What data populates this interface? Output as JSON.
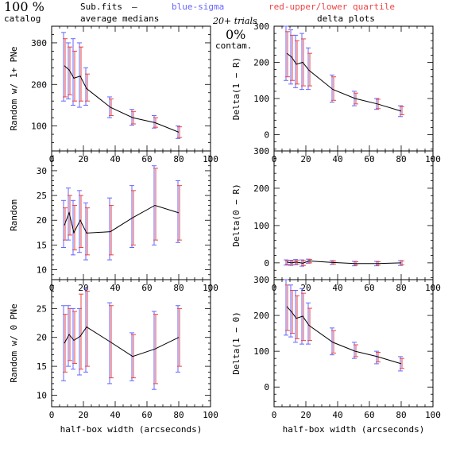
{
  "header": {
    "percent": "100 %",
    "catalog": "catalog",
    "subfits": "Sub.fits",
    "dash": "–",
    "average_medians": "average medians",
    "legend_sigma": "blue-sigma",
    "legend_quartile": "red-upper/lower quartile",
    "trials": "20+ trials",
    "contam_value": "0%",
    "contam_label": "contam.",
    "delta_plots": "delta plots"
  },
  "colors": {
    "sigma": "#6666ff",
    "quartile": "#ee4444",
    "line": "#000000",
    "axis": "#000000"
  },
  "chart_data": [
    {
      "id": "random_1plus",
      "type": "line",
      "ylabel": "Random w/ 1+ PNe",
      "xlim": [
        0,
        100
      ],
      "ylim": [
        40,
        340
      ],
      "xticks": [
        "0",
        "20",
        "40",
        "60",
        "80",
        "100"
      ],
      "yticks": [
        100,
        200,
        300
      ],
      "ytick_labels": [
        "100",
        "200",
        "300"
      ],
      "x": [
        8,
        11,
        14,
        18,
        22,
        37,
        51,
        65,
        80
      ],
      "y": [
        245,
        235,
        215,
        220,
        190,
        145,
        120,
        108,
        85
      ],
      "sigma_hi": [
        325,
        300,
        310,
        300,
        240,
        170,
        140,
        125,
        100
      ],
      "sigma_lo": [
        160,
        165,
        150,
        145,
        150,
        120,
        102,
        95,
        70
      ],
      "quartile_hi": [
        310,
        290,
        280,
        290,
        225,
        165,
        135,
        120,
        98
      ],
      "quartile_lo": [
        170,
        175,
        160,
        160,
        160,
        125,
        105,
        97,
        72
      ]
    },
    {
      "id": "delta_1_minus_R",
      "type": "line",
      "ylabel": "Delta(1 − R)",
      "xlim": [
        0,
        100
      ],
      "ylim": [
        -45,
        300
      ],
      "xticks": [
        "0",
        "20",
        "40",
        "60",
        "80",
        "100"
      ],
      "yticks": [
        0,
        100,
        200,
        300
      ],
      "ytick_labels": [
        "0",
        "100",
        "200",
        "300"
      ],
      "x": [
        8,
        11,
        14,
        18,
        22,
        37,
        51,
        65,
        80
      ],
      "y": [
        225,
        215,
        195,
        200,
        178,
        125,
        100,
        85,
        65
      ],
      "sigma_hi": [
        300,
        290,
        275,
        280,
        240,
        165,
        120,
        100,
        80
      ],
      "sigma_lo": [
        150,
        140,
        130,
        125,
        125,
        90,
        80,
        70,
        50
      ],
      "quartile_hi": [
        285,
        275,
        260,
        265,
        225,
        160,
        115,
        98,
        78
      ],
      "quartile_lo": [
        160,
        150,
        140,
        135,
        135,
        95,
        85,
        72,
        55
      ]
    },
    {
      "id": "random",
      "type": "line",
      "ylabel": "Random",
      "xlim": [
        0,
        100
      ],
      "ylim": [
        8,
        34
      ],
      "xticks": [
        "0",
        "20",
        "40",
        "60",
        "80",
        "100"
      ],
      "yticks": [
        10,
        15,
        20,
        25,
        30
      ],
      "ytick_labels": [
        "10",
        "15",
        "20",
        "25",
        "30"
      ],
      "x": [
        8,
        11,
        14,
        18,
        22,
        37,
        51,
        65,
        80
      ],
      "y": [
        19,
        21.5,
        17.5,
        20,
        17.4,
        17.7,
        20.5,
        23,
        21.5
      ],
      "sigma_hi": [
        24,
        26.5,
        24,
        26,
        23.5,
        24.5,
        27,
        31,
        28
      ],
      "sigma_lo": [
        14.5,
        16,
        13,
        13.5,
        12,
        12,
        14.5,
        15,
        15.5
      ],
      "quartile_hi": [
        22.5,
        25,
        23,
        25,
        22.5,
        23,
        26,
        30.5,
        27
      ],
      "quartile_lo": [
        16,
        17,
        14,
        14.5,
        13,
        13,
        15,
        16,
        16
      ]
    },
    {
      "id": "delta_0_minus_R",
      "type": "line",
      "ylabel": "Delta(0 − R)",
      "xlim": [
        0,
        100
      ],
      "ylim": [
        -45,
        300
      ],
      "xticks": [
        "0",
        "20",
        "40",
        "60",
        "80",
        "100"
      ],
      "yticks": [
        0,
        100,
        200,
        300
      ],
      "ytick_labels": [
        "0",
        "100",
        "200",
        "300"
      ],
      "x": [
        8,
        11,
        14,
        18,
        22,
        37,
        51,
        65,
        80
      ],
      "y": [
        2,
        0,
        2,
        -1,
        5,
        1,
        -2,
        -2,
        0
      ],
      "sigma_hi": [
        8,
        7,
        9,
        8,
        10,
        6,
        4,
        4,
        6
      ],
      "sigma_lo": [
        -6,
        -7,
        -5,
        -9,
        -1,
        -4,
        -8,
        -8,
        -7
      ],
      "quartile_hi": [
        6,
        5,
        7,
        6,
        9,
        5,
        3,
        3,
        5
      ],
      "quartile_lo": [
        -4,
        -5,
        -3,
        -7,
        0,
        -3,
        -6,
        -6,
        -5
      ]
    },
    {
      "id": "random_0",
      "type": "line",
      "ylabel": "Random w/ 0 PNe",
      "xlabel": "half-box width (arcseconds)",
      "xlim": [
        0,
        100
      ],
      "ylim": [
        8,
        30
      ],
      "xticks": [
        "0",
        "20",
        "40",
        "60",
        "80",
        "100"
      ],
      "yticks": [
        10,
        15,
        20,
        25
      ],
      "ytick_labels": [
        "10",
        "15",
        "20",
        "25"
      ],
      "x": [
        8,
        11,
        14,
        18,
        22,
        37,
        51,
        65,
        80
      ],
      "y": [
        19,
        20.5,
        19.5,
        20.2,
        21.8,
        19.2,
        16.7,
        18,
        20
      ],
      "sigma_hi": [
        25.5,
        25.5,
        25,
        25,
        28.5,
        26,
        20.8,
        24.5,
        25.5
      ],
      "sigma_lo": [
        12.5,
        15,
        14.5,
        13.5,
        14,
        12,
        12.5,
        11,
        14
      ],
      "quartile_hi": [
        24,
        25,
        24.5,
        27.5,
        28,
        25.5,
        20.5,
        24,
        25
      ],
      "quartile_lo": [
        14,
        16,
        15.5,
        14.5,
        15,
        13,
        13,
        12,
        15
      ]
    },
    {
      "id": "delta_1_minus_0",
      "type": "line",
      "ylabel": "Delta(1 − 0)",
      "xlabel": "half-box width (arcseconds)",
      "xlim": [
        0,
        100
      ],
      "ylim": [
        -55,
        300
      ],
      "xticks": [
        "0",
        "20",
        "40",
        "60",
        "80",
        "100"
      ],
      "yticks": [
        0,
        100,
        200,
        300
      ],
      "ytick_labels": [
        "0",
        "100",
        "200",
        "300"
      ],
      "x": [
        8,
        11,
        14,
        18,
        22,
        37,
        51,
        65,
        80
      ],
      "y": [
        225,
        210,
        192,
        198,
        172,
        125,
        100,
        85,
        65
      ],
      "sigma_hi": [
        300,
        285,
        270,
        275,
        235,
        165,
        125,
        100,
        85
      ],
      "sigma_lo": [
        145,
        140,
        125,
        120,
        120,
        90,
        80,
        65,
        45
      ],
      "quartile_hi": [
        285,
        270,
        255,
        262,
        220,
        158,
        118,
        97,
        80
      ],
      "quartile_lo": [
        158,
        150,
        135,
        130,
        130,
        95,
        85,
        70,
        52
      ]
    }
  ]
}
